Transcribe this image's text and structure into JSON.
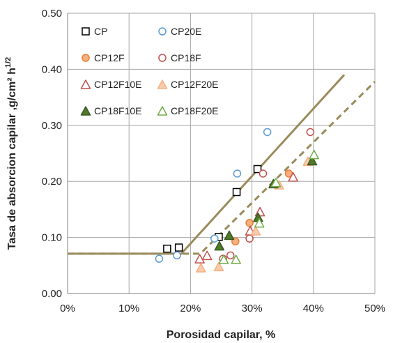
{
  "chart_data": {
    "type": "scatter",
    "title": "",
    "xlabel": "Porosidad capilar, %",
    "ylabel_main": "Tasa de absorcion capilar ,g/cm² h",
    "ylabel_sup": "1/2",
    "xlim": [
      0,
      0.5
    ],
    "ylim": [
      0,
      0.5
    ],
    "x_ticks": [
      0,
      0.1,
      0.2,
      0.3,
      0.4,
      0.5
    ],
    "x_tick_labels": [
      "0%",
      "10%",
      "20%",
      "30%",
      "40%",
      "50%"
    ],
    "y_ticks": [
      0,
      0.1,
      0.2,
      0.3,
      0.4,
      0.5
    ],
    "y_tick_labels": [
      "0.00",
      "0.10",
      "0.20",
      "0.30",
      "0.40",
      "0.50"
    ],
    "grid": true,
    "legend_position": "top-left",
    "series": [
      {
        "name": "CP",
        "marker": "square",
        "filled": false,
        "color": "#000000",
        "points": [
          [
            0.162,
            0.08
          ],
          [
            0.181,
            0.082
          ],
          [
            0.246,
            0.101
          ],
          [
            0.275,
            0.181
          ],
          [
            0.309,
            0.222
          ]
        ]
      },
      {
        "name": "CP20E",
        "marker": "circle",
        "filled": false,
        "color": "#5b9bd5",
        "points": [
          [
            0.149,
            0.062
          ],
          [
            0.178,
            0.068
          ],
          [
            0.239,
            0.098
          ],
          [
            0.276,
            0.214
          ],
          [
            0.325,
            0.288
          ]
        ]
      },
      {
        "name": "CP12F",
        "marker": "circle",
        "filled": true,
        "color": "#f4b183",
        "edge": "#ed7d31",
        "points": [
          [
            0.273,
            0.093
          ],
          [
            0.296,
            0.126
          ],
          [
            0.36,
            0.214
          ]
        ]
      },
      {
        "name": "CP18F",
        "marker": "circle",
        "filled": false,
        "color": "#c0504d",
        "points": [
          [
            0.253,
            0.062
          ],
          [
            0.265,
            0.068
          ],
          [
            0.296,
            0.098
          ],
          [
            0.318,
            0.214
          ],
          [
            0.395,
            0.288
          ]
        ]
      },
      {
        "name": "CP12F10E",
        "marker": "triangle",
        "filled": false,
        "color": "#c0504d",
        "points": [
          [
            0.215,
            0.062
          ],
          [
            0.227,
            0.068
          ],
          [
            0.297,
            0.112
          ],
          [
            0.313,
            0.146
          ],
          [
            0.367,
            0.208
          ]
        ]
      },
      {
        "name": "CP12F20E",
        "marker": "triangle",
        "filled": true,
        "color": "#f8cbad",
        "edge": "#f4b183",
        "points": [
          [
            0.217,
            0.046
          ],
          [
            0.246,
            0.048
          ],
          [
            0.306,
            0.112
          ],
          [
            0.344,
            0.194
          ],
          [
            0.391,
            0.236
          ]
        ]
      },
      {
        "name": "CP18F10E",
        "marker": "triangle",
        "filled": true,
        "color": "#4f7a28",
        "edge": "#385723",
        "points": [
          [
            0.247,
            0.085
          ],
          [
            0.263,
            0.104
          ],
          [
            0.31,
            0.136
          ],
          [
            0.335,
            0.196
          ],
          [
            0.398,
            0.237
          ]
        ]
      },
      {
        "name": "CP18F20E",
        "marker": "triangle",
        "filled": false,
        "color": "#70ad47",
        "points": [
          [
            0.254,
            0.061
          ],
          [
            0.274,
            0.061
          ],
          [
            0.312,
            0.126
          ],
          [
            0.339,
            0.198
          ],
          [
            0.401,
            0.248
          ]
        ]
      }
    ],
    "fit_lines": [
      {
        "style": "solid",
        "color": "#9b8b5b",
        "points": [
          [
            0,
            0.071
          ],
          [
            0.185,
            0.071
          ],
          [
            0.45,
            0.39
          ]
        ]
      },
      {
        "style": "dashed",
        "color": "#9b8b5b",
        "points": [
          [
            0,
            0.071
          ],
          [
            0.216,
            0.071
          ],
          [
            0.5,
            0.378
          ]
        ]
      }
    ]
  }
}
